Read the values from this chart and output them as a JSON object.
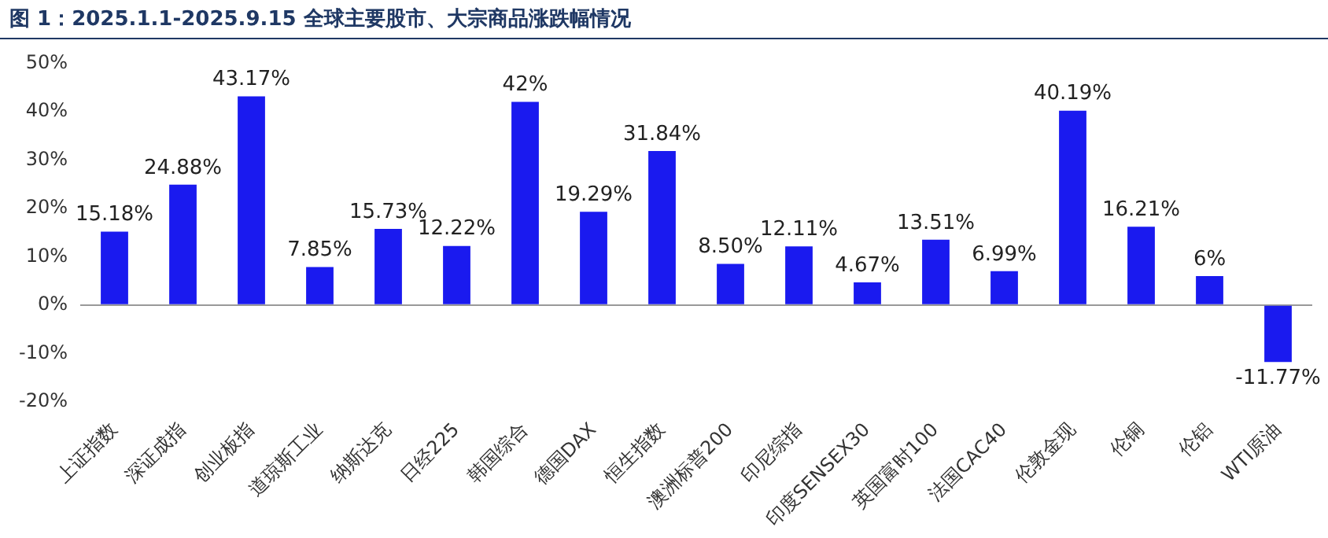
{
  "chart_data": {
    "type": "bar",
    "title": "图 1：2025.1.1-2025.9.15 全球主要股市、大宗商品涨跌幅情况",
    "categories": [
      "上证指数",
      "深证成指",
      "创业板指",
      "道琼斯工业",
      "纳斯达克",
      "日经225",
      "韩国综合",
      "德国DAX",
      "恒生指数",
      "澳洲标普200",
      "印尼综指",
      "印度SENSEX30",
      "英国富时100",
      "法国CAC40",
      "伦敦金现",
      "伦铜",
      "伦铝",
      "WTI原油"
    ],
    "values": [
      15.18,
      24.88,
      43.17,
      7.85,
      15.73,
      12.22,
      42,
      19.29,
      31.84,
      8.5,
      12.11,
      4.67,
      13.51,
      6.99,
      40.19,
      16.21,
      6,
      -11.77
    ],
    "value_labels": [
      "15.18%",
      "24.88%",
      "43.17%",
      "7.85%",
      "15.73%",
      "12.22%",
      "42%",
      "19.29%",
      "31.84%",
      "8.50%",
      "12.11%",
      "4.67%",
      "13.51%",
      "6.99%",
      "40.19%",
      "16.21%",
      "6%",
      "-11.77%"
    ],
    "color": "#1a1aef",
    "ylim": [
      -20,
      50
    ],
    "yticks": [
      {
        "value": -20,
        "label": "-20%"
      },
      {
        "value": -10,
        "label": "-10%"
      },
      {
        "value": 0,
        "label": "0%"
      },
      {
        "value": 10,
        "label": "10%"
      },
      {
        "value": 20,
        "label": "20%"
      },
      {
        "value": 30,
        "label": "30%"
      },
      {
        "value": 40,
        "label": "40%"
      },
      {
        "value": 50,
        "label": "50%"
      }
    ]
  }
}
